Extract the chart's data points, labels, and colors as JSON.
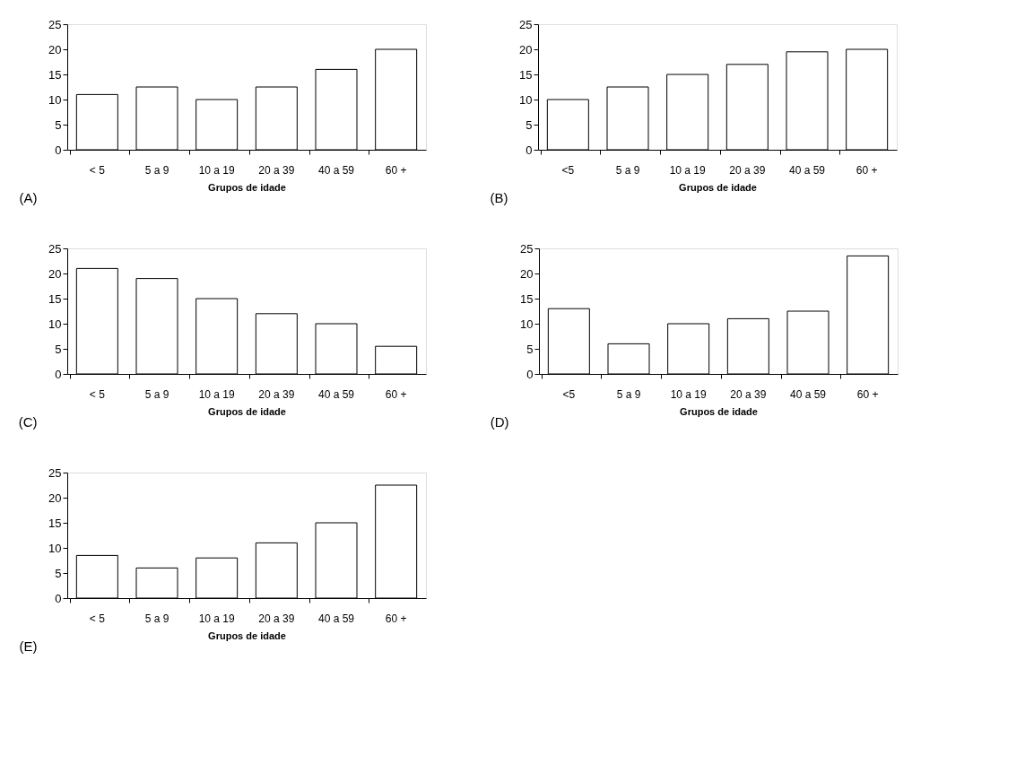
{
  "chart_data": [
    {
      "type": "bar",
      "title": "(A)",
      "categories": [
        "< 5",
        "5 a 9",
        "10 a 19",
        "20 a 39",
        "40 a 59",
        "60 +"
      ],
      "values": [
        11,
        12.5,
        10,
        12.5,
        16,
        20
      ],
      "color": "#ffffff",
      "xlabel": "Grupos de idade",
      "ylim": [
        0,
        25
      ],
      "yticks": [
        0,
        5,
        10,
        15,
        20,
        25
      ],
      "grid": false
    },
    {
      "type": "bar",
      "title": "(B)",
      "categories": [
        "<5",
        "5 a 9",
        "10 a 19",
        "20 a 39",
        "40 a 59",
        "60 +"
      ],
      "values": [
        10,
        12.5,
        15,
        17,
        19.5,
        20
      ],
      "color": "#ffffff",
      "xlabel": "Grupos de idade",
      "ylim": [
        0,
        25
      ],
      "yticks": [
        0,
        5,
        10,
        15,
        20,
        25
      ],
      "grid": false
    },
    {
      "type": "bar",
      "title": "(C)",
      "categories": [
        "< 5",
        "5 a 9",
        "10 a 19",
        "20 a 39",
        "40 a 59",
        "60 +"
      ],
      "values": [
        21,
        19,
        15,
        12,
        10,
        5.5
      ],
      "color": "#ffffff",
      "xlabel": "Grupos de idade",
      "ylim": [
        0,
        25
      ],
      "yticks": [
        0,
        5,
        10,
        15,
        20,
        25
      ],
      "grid": false
    },
    {
      "type": "bar",
      "title": "(D)",
      "categories": [
        "<5",
        "5 a 9",
        "10 a 19",
        "20 a 39",
        "40 a 59",
        "60 +"
      ],
      "values": [
        13,
        6,
        10,
        11,
        12.5,
        23.5
      ],
      "color": "#ffffff",
      "xlabel": "Grupos de idade",
      "ylim": [
        0,
        25
      ],
      "yticks": [
        0,
        5,
        10,
        15,
        20,
        25
      ],
      "grid": false
    },
    {
      "type": "bar",
      "title": "(E)",
      "categories": [
        "< 5",
        "5 a 9",
        "10 a 19",
        "20 a 39",
        "40 a 59",
        "60 +"
      ],
      "values": [
        8.5,
        6,
        8,
        11,
        15,
        22.5
      ],
      "color": "#ffffff",
      "xlabel": "Grupos de idade",
      "ylim": [
        0,
        25
      ],
      "yticks": [
        0,
        5,
        10,
        15,
        20,
        25
      ],
      "grid": false
    }
  ]
}
